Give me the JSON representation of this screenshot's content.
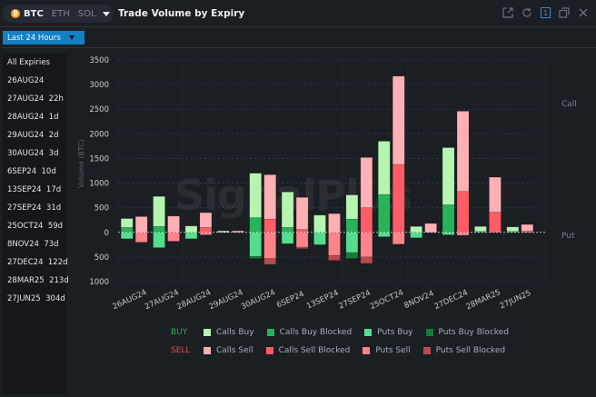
{
  "header": {
    "coins": [
      {
        "label": "BTC",
        "active": true
      },
      {
        "label": "ETH",
        "active": false
      },
      {
        "label": "SOL",
        "active": false
      }
    ],
    "title": "Trade Volume by Expiry",
    "window_icons": [
      "popout-icon",
      "refresh-icon",
      "one-icon",
      "restore-icon",
      "close-icon"
    ],
    "one_label": "1"
  },
  "filter": {
    "time_range": "Last 24 Hours"
  },
  "sidebar": {
    "items": [
      {
        "label": "All Expiries"
      },
      {
        "label": "26AUG24"
      },
      {
        "label": "27AUG24  22h"
      },
      {
        "label": "28AUG24  1d"
      },
      {
        "label": "29AUG24  2d"
      },
      {
        "label": "30AUG24  3d"
      },
      {
        "label": "6SEP24  10d"
      },
      {
        "label": "13SEP24  17d"
      },
      {
        "label": "27SEP24  31d"
      },
      {
        "label": "25OCT24  59d"
      },
      {
        "label": "8NOV24  73d"
      },
      {
        "label": "27DEC24  122d"
      },
      {
        "label": "28MAR25  213d"
      },
      {
        "label": "27JUN25  304d"
      }
    ]
  },
  "watermark": "SignalPlus",
  "colors": {
    "calls_buy": "#b6f5b0",
    "calls_buy_blocked": "#27b35a",
    "puts_buy": "#55dd8e",
    "puts_buy_blocked": "#1a7a3b",
    "calls_sell": "#ffb0b5",
    "calls_sell_blocked": "#ff5c66",
    "puts_sell": "#ff8489",
    "puts_sell_blocked": "#b84a50",
    "buy_label": "#2fae58",
    "sell_label": "#e0525a"
  },
  "chart_data": {
    "type": "bar",
    "title": "Trade Volume by Expiry",
    "ylabel": "Volume (BTC)",
    "xlabel": "",
    "ylim": [
      -1000,
      3500
    ],
    "yticks": [
      {
        "value": 3500,
        "label": "3500"
      },
      {
        "value": 3000,
        "label": "3000"
      },
      {
        "value": 2500,
        "label": "2500"
      },
      {
        "value": 2000,
        "label": "2000"
      },
      {
        "value": 1500,
        "label": "1500"
      },
      {
        "value": 1000,
        "label": "1000"
      },
      {
        "value": 500,
        "label": "500"
      },
      {
        "value": 0,
        "label": "0"
      },
      {
        "value": -500,
        "label": "500"
      },
      {
        "value": -1000,
        "label": "1000"
      }
    ],
    "right_labels": {
      "call": "Call",
      "put": "Put"
    },
    "grid": true,
    "legend_position": "bottom",
    "legend": {
      "buy_label": "BUY",
      "sell_label": "SELL",
      "buy": [
        "Calls Buy",
        "Calls Buy Blocked",
        "Puts Buy",
        "Puts Buy Blocked"
      ],
      "sell": [
        "Calls Sell",
        "Calls Sell Blocked",
        "Puts Sell",
        "Puts Sell Blocked"
      ]
    },
    "categories": [
      "26AUG24",
      "27AUG24",
      "28AUG24",
      "29AUG24",
      "30AUG24",
      "6SEP24",
      "13SEP24",
      "27SEP24",
      "25OCT24",
      "8NOV24",
      "27DEC24",
      "28MAR25",
      "27JUN25"
    ],
    "series": [
      {
        "name": "Calls Buy",
        "side": "buy",
        "values": [
          180,
          610,
          130,
          30,
          900,
          720,
          350,
          490,
          1080,
          120,
          1160,
          100,
          90
        ]
      },
      {
        "name": "Calls Buy Blocked",
        "side": "buy",
        "values": [
          100,
          120,
          0,
          0,
          300,
          100,
          0,
          270,
          770,
          0,
          560,
          20,
          20
        ]
      },
      {
        "name": "Puts Buy",
        "side": "buy",
        "values": [
          -130,
          -310,
          -130,
          0,
          -490,
          -230,
          -250,
          -410,
          -90,
          -110,
          -50,
          0,
          0
        ]
      },
      {
        "name": "Puts Buy Blocked",
        "side": "buy",
        "values": [
          0,
          0,
          0,
          0,
          -40,
          0,
          0,
          -120,
          0,
          0,
          0,
          0,
          0
        ]
      },
      {
        "name": "Calls Sell",
        "side": "sell",
        "values": [
          320,
          330,
          300,
          30,
          900,
          650,
          380,
          1020,
          1790,
          180,
          1630,
          710,
          130
        ]
      },
      {
        "name": "Calls Sell Blocked",
        "side": "sell",
        "values": [
          0,
          0,
          100,
          0,
          270,
          60,
          0,
          500,
          1380,
          0,
          830,
          410,
          30
        ]
      },
      {
        "name": "Puts Sell",
        "side": "sell",
        "values": [
          -200,
          -180,
          -50,
          0,
          -530,
          -300,
          -470,
          -500,
          -240,
          0,
          -60,
          0,
          0
        ]
      },
      {
        "name": "Puts Sell Blocked",
        "side": "sell",
        "values": [
          0,
          0,
          0,
          0,
          -120,
          -30,
          -100,
          -130,
          0,
          0,
          0,
          0,
          0
        ]
      }
    ]
  }
}
